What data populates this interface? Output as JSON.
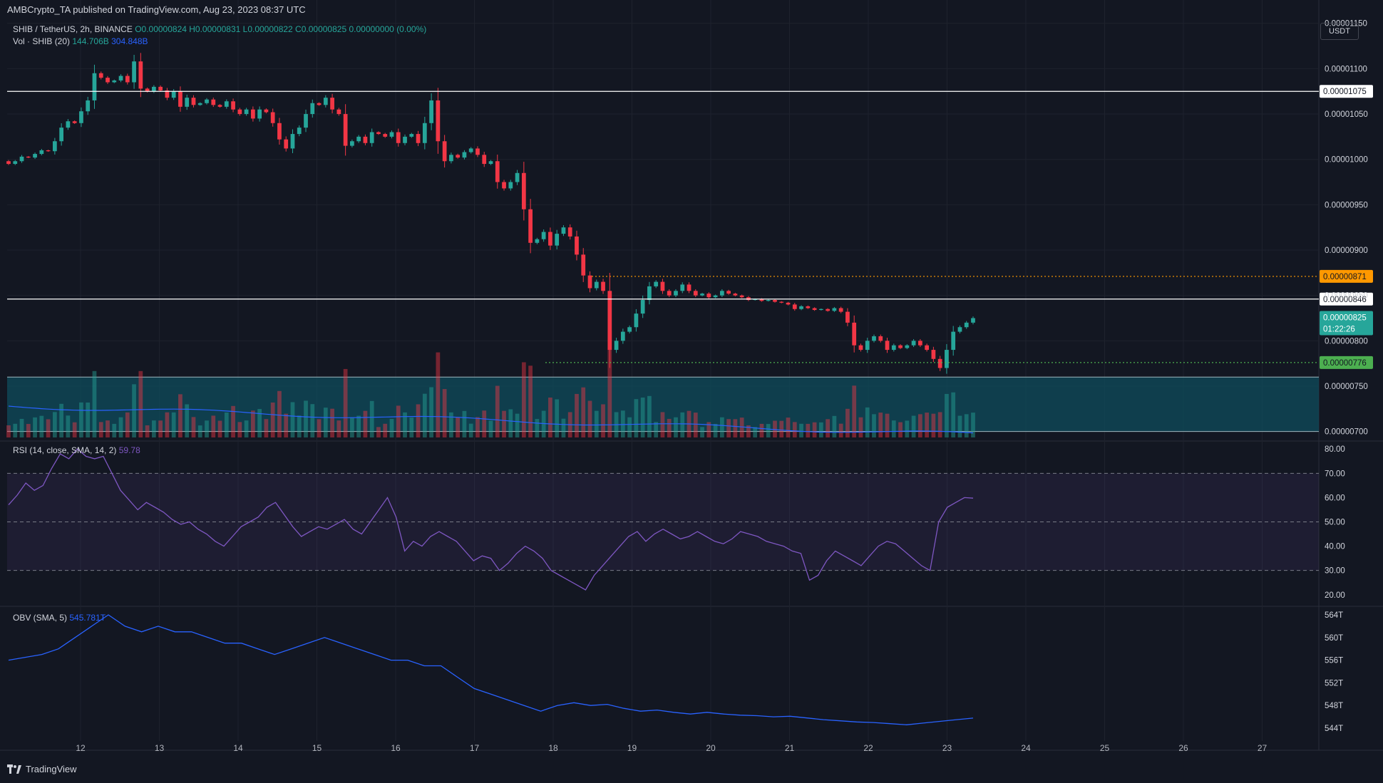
{
  "header": {
    "publisher": "AMBCrypto_TA published on TradingView.com, Aug 23, 2023 08:37 UTC"
  },
  "legend": {
    "symbol": "SHIB / TetherUS, 2h, BINANCE",
    "ohlc": "O0.00000824 H0.00000831 L0.00000822 C0.00000825 0.00000000 (0.00%)",
    "volume_label": "Vol · SHIB (20)",
    "volume_value": "144.706B",
    "volume_ma": "304.848B",
    "rsi_label": "RSI (14, close, SMA, 14, 2)",
    "rsi_value": "59.78",
    "obv_label": "OBV (SMA, 5)",
    "obv_value": "545.781T"
  },
  "currency": "USDT",
  "footer": {
    "brand": "TradingView"
  },
  "colors": {
    "up": "#26a69a",
    "down": "#f23645",
    "bg": "#131722",
    "grid": "#1e222d",
    "rsi": "#7e57c2",
    "obv": "#2962ff",
    "zone": "#0f4c5c",
    "orange": "#ff9800",
    "green_label": "#4caf50"
  },
  "chart_data": [
    {
      "type": "candlestick",
      "x_ticks": [
        "12",
        "13",
        "14",
        "15",
        "16",
        "17",
        "18",
        "19",
        "20",
        "21",
        "22",
        "23",
        "24",
        "25",
        "26",
        "27"
      ],
      "y_ticks": [
        "0.00001150",
        "0.00001100",
        "0.00001050",
        "0.00001000",
        "0.00000950",
        "0.00000900",
        "0.00000850",
        "0.00000800",
        "0.00000750",
        "0.00000700"
      ],
      "ylim": [
        6.95e-06,
        1.16e-05
      ],
      "horizontal_levels": [
        {
          "value": 1.075e-05,
          "label": "0.00001075",
          "style": "white"
        },
        {
          "value": 8.71e-06,
          "label": "0.00000871",
          "style": "orange-dotted"
        },
        {
          "value": 8.46e-06,
          "label": "0.00000846",
          "style": "white"
        },
        {
          "value": 7.76e-06,
          "label": "0.00000776",
          "style": "green-dotted"
        }
      ],
      "zone": {
        "from": 7e-06,
        "to": 7.6e-06
      },
      "last_price": {
        "value": 8.25e-06,
        "label": "0.00000825",
        "countdown": "01:22:26"
      },
      "close_series": [
        9.95e-06,
        9.98e-06,
        1.003e-05,
        1.002e-05,
        1.006e-05,
        1.01e-05,
        1.009e-05,
        1.02e-05,
        1.035e-05,
        1.042e-05,
        1.04e-05,
        1.053e-05,
        1.065e-05,
        1.095e-05,
        1.09e-05,
        1.085e-05,
        1.087e-05,
        1.092e-05,
        1.085e-05,
        1.108e-05,
        1.078e-05,
        1.075e-05,
        1.08e-05,
        1.076e-05,
        1.068e-05,
        1.075e-05,
        1.058e-05,
        1.068e-05,
        1.06e-05,
        1.062e-05,
        1.066e-05,
        1.06e-05,
        1.058e-05,
        1.064e-05,
        1.055e-05,
        1.05e-05,
        1.055e-05,
        1.045e-05,
        1.055e-05,
        1.052e-05,
        1.04e-05,
        1.022e-05,
        1.012e-05,
        1.028e-05,
        1.035e-05,
        1.05e-05,
        1.062e-05,
        1.06e-05,
        1.068e-05,
        1.055e-05,
        1.05e-05,
        1.015e-05,
        1.02e-05,
        1.025e-05,
        1.018e-05,
        1.03e-05,
        1.028e-05,
        1.025e-05,
        1.03e-05,
        1.018e-05,
        1.025e-05,
        1.028e-05,
        1.018e-05,
        1.04e-05,
        1.065e-05,
        1.02e-05,
        9.98e-06,
        1.005e-05,
        1.002e-05,
        1.008e-05,
        1.012e-05,
        1.005e-05,
        9.95e-06,
        9.98e-06,
        9.75e-06,
        9.68e-06,
        9.75e-06,
        9.85e-06,
        9.45e-06,
        9.08e-06,
        9.12e-06,
        9.2e-06,
        9.05e-06,
        9.18e-06,
        9.25e-06,
        9.15e-06,
        8.95e-06,
        8.72e-06,
        8.58e-06,
        8.65e-06,
        8.55e-06,
        7.9e-06,
        8e-06,
        8.1e-06,
        8.15e-06,
        8.3e-06,
        8.45e-06,
        8.6e-06,
        8.65e-06,
        8.55e-06,
        8.5e-06,
        8.55e-06,
        8.62e-06,
        8.55e-06,
        8.5e-06,
        8.52e-06,
        8.48e-06,
        8.5e-06,
        8.55e-06,
        8.52e-06,
        8.5e-06,
        8.48e-06,
        8.45e-06,
        8.46e-06,
        8.44e-06,
        8.45e-06,
        8.43e-06,
        8.42e-06,
        8.4e-06,
        8.35e-06,
        8.38e-06,
        8.36e-06,
        8.34e-06,
        8.35e-06,
        8.33e-06,
        8.36e-06,
        8.32e-06,
        8.2e-06,
        7.95e-06,
        7.9e-06,
        8e-06,
        8.05e-06,
        8e-06,
        7.9e-06,
        7.95e-06,
        7.92e-06,
        7.95e-06,
        8e-06,
        7.95e-06,
        7.9e-06,
        7.8e-06,
        7.7e-06,
        7.9e-06,
        8.1e-06,
        8.15e-06,
        8.2e-06,
        8.25e-06
      ],
      "volume_note": "volume bars with SMA(20) overlay"
    },
    {
      "type": "line",
      "name": "RSI (14, close, SMA, 14, 2)",
      "y_ticks": [
        "80.00",
        "70.00",
        "60.00",
        "50.00",
        "40.00",
        "30.00",
        "20.00"
      ],
      "ylim": [
        17,
        83
      ],
      "bands": [
        30,
        50,
        70
      ],
      "values": [
        57,
        61,
        66,
        63,
        65,
        72,
        78,
        76,
        80,
        77,
        76,
        77,
        70,
        63,
        59,
        55,
        58,
        56,
        54,
        51,
        49,
        50,
        47,
        45,
        42,
        40,
        44,
        48,
        50,
        52,
        56,
        58,
        53,
        48,
        44,
        46,
        48,
        47,
        49,
        51,
        47,
        45,
        50,
        55,
        60,
        52,
        38,
        42,
        40,
        44,
        46,
        44,
        42,
        38,
        34,
        36,
        35,
        30,
        33,
        37,
        40,
        38,
        35,
        30,
        28,
        26,
        24,
        22,
        28,
        32,
        36,
        40,
        44,
        46,
        42,
        45,
        47,
        45,
        43,
        44,
        46,
        44,
        42,
        41,
        43,
        46,
        45,
        44,
        42,
        41,
        40,
        38,
        37,
        26,
        28,
        34,
        38,
        36,
        34,
        32,
        36,
        40,
        42,
        41,
        38,
        35,
        32,
        30,
        50,
        56,
        58,
        60,
        59.78
      ]
    },
    {
      "type": "line",
      "name": "OBV (SMA, 5)",
      "y_ticks": [
        "564T",
        "560T",
        "556T",
        "552T",
        "548T",
        "544T"
      ],
      "ylim": [
        543,
        565
      ],
      "values": [
        556,
        556.5,
        557,
        558,
        560,
        562,
        564,
        562,
        561,
        562,
        561,
        561,
        560,
        559,
        559,
        558,
        557,
        558,
        559,
        560,
        559,
        558,
        557,
        556,
        556,
        555,
        555,
        553,
        551,
        550,
        549,
        548,
        547,
        548,
        548.5,
        548,
        548.2,
        547.5,
        547,
        547.2,
        546.8,
        546.5,
        546.8,
        546.5,
        546.3,
        546.2,
        546,
        546.1,
        545.8,
        545.5,
        545.3,
        545.1,
        545,
        544.8,
        544.6,
        544.9,
        545.2,
        545.5,
        545.781
      ]
    }
  ]
}
